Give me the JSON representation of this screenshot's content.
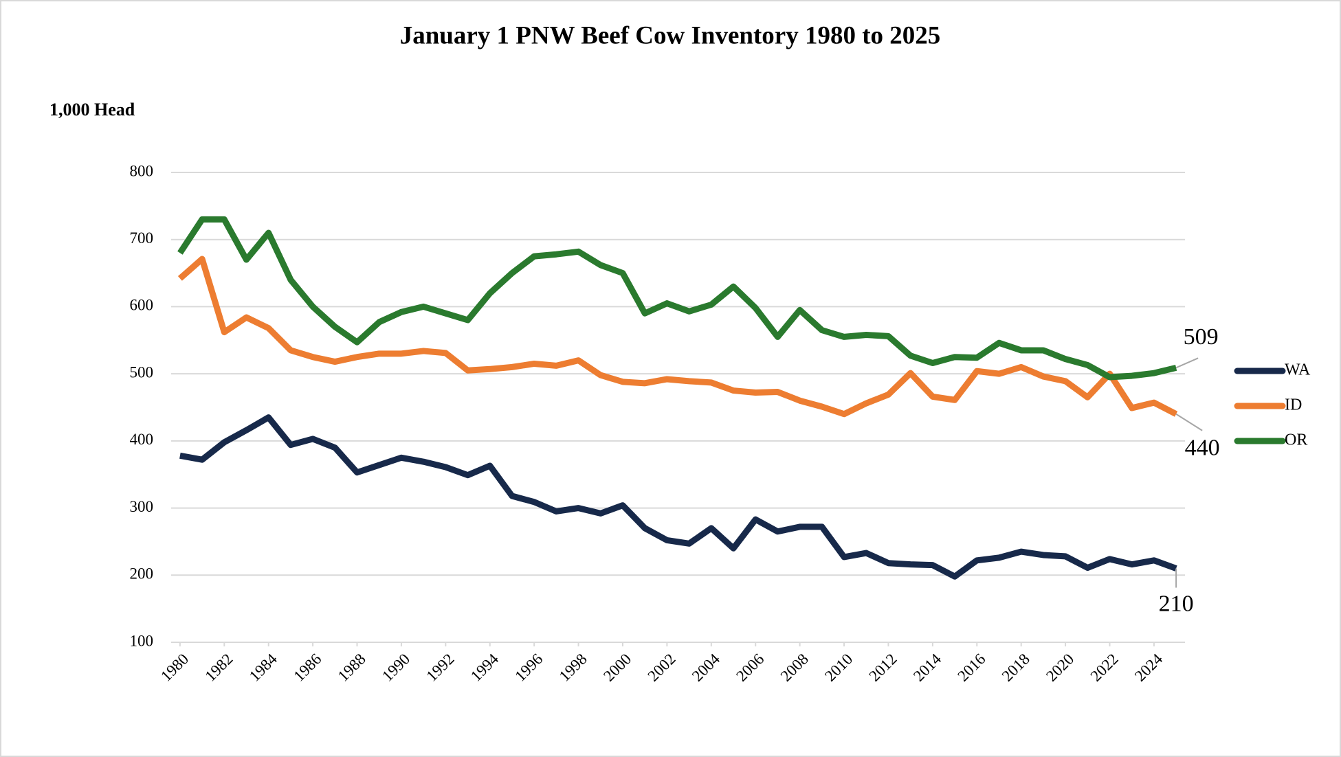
{
  "chart_data": {
    "type": "line",
    "title": "January 1 PNW Beef Cow Inventory 1980 to 2025",
    "y_axis_label": "1,000 Head",
    "x": [
      1980,
      1981,
      1982,
      1983,
      1984,
      1985,
      1986,
      1987,
      1988,
      1989,
      1990,
      1991,
      1992,
      1993,
      1994,
      1995,
      1996,
      1997,
      1998,
      1999,
      2000,
      2001,
      2002,
      2003,
      2004,
      2005,
      2006,
      2007,
      2008,
      2009,
      2010,
      2011,
      2012,
      2013,
      2014,
      2015,
      2016,
      2017,
      2018,
      2019,
      2020,
      2021,
      2022,
      2023,
      2024,
      2025
    ],
    "series": [
      {
        "name": "WA",
        "color": "#17294a",
        "values": [
          378,
          372,
          398,
          416,
          435,
          394,
          403,
          390,
          353,
          364,
          375,
          369,
          361,
          349,
          363,
          318,
          309,
          295,
          300,
          292,
          304,
          270,
          252,
          247,
          270,
          240,
          283,
          265,
          272,
          272,
          227,
          233,
          218,
          216,
          215,
          198,
          222,
          226,
          235,
          230,
          228,
          211,
          224,
          216,
          222,
          210
        ]
      },
      {
        "name": "ID",
        "color": "#ed7d31",
        "values": [
          642,
          671,
          562,
          584,
          568,
          535,
          525,
          518,
          525,
          530,
          530,
          534,
          531,
          505,
          507,
          510,
          515,
          512,
          520,
          498,
          488,
          486,
          492,
          489,
          487,
          475,
          472,
          473,
          460,
          451,
          440,
          456,
          469,
          501,
          466,
          461,
          504,
          500,
          510,
          496,
          489,
          465,
          500,
          449,
          457,
          440
        ]
      },
      {
        "name": "OR",
        "color": "#2a7a2e",
        "values": [
          680,
          730,
          730,
          670,
          710,
          640,
          600,
          570,
          547,
          577,
          592,
          600,
          590,
          580,
          620,
          650,
          675,
          678,
          682,
          662,
          650,
          590,
          605,
          593,
          603,
          630,
          598,
          555,
          595,
          565,
          555,
          558,
          556,
          527,
          516,
          525,
          524,
          546,
          535,
          535,
          522,
          513,
          495,
          497,
          501,
          509
        ]
      }
    ],
    "last_value_labels": true,
    "xlim": [
      1979.6,
      2025.4
    ],
    "xticks": [
      1980,
      1982,
      1984,
      1986,
      1988,
      1990,
      1992,
      1994,
      1996,
      1998,
      2000,
      2002,
      2004,
      2006,
      2008,
      2010,
      2012,
      2014,
      2016,
      2018,
      2020,
      2022,
      2024
    ],
    "ylim": [
      100,
      800
    ],
    "yticks": [
      100,
      200,
      300,
      400,
      500,
      600,
      700,
      800
    ],
    "grid": true,
    "legend": "right"
  }
}
